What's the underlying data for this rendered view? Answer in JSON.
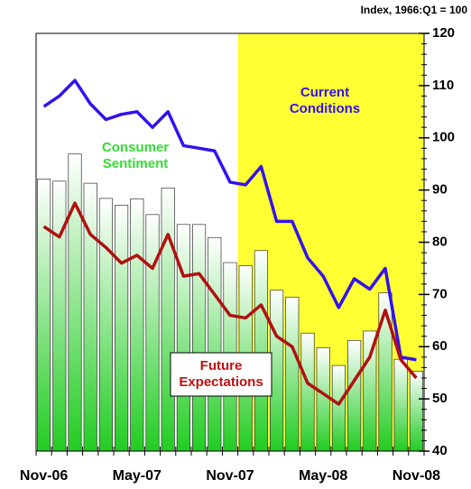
{
  "chart_data": {
    "type": "bar",
    "subtitle": "Index, 1966:Q1 = 100",
    "categories": [
      "Nov-06",
      null,
      null,
      null,
      null,
      null,
      "May-07",
      null,
      null,
      null,
      null,
      null,
      "Nov-07",
      null,
      null,
      null,
      null,
      null,
      "May-08",
      null,
      null,
      null,
      null,
      null,
      "Nov-08"
    ],
    "highlight": {
      "from": 13,
      "to": 24,
      "color": "#ffff33"
    },
    "ylim": [
      40,
      120
    ],
    "yticks": [
      40,
      50,
      60,
      70,
      80,
      90,
      100,
      110,
      120
    ],
    "series": [
      {
        "name": "Consumer Sentiment",
        "type": "bar",
        "color": "#22cc22",
        "label_color": "#33dd33",
        "values": [
          92.1,
          91.7,
          96.9,
          91.3,
          88.4,
          87.1,
          88.3,
          85.3,
          90.4,
          83.4,
          83.4,
          80.9,
          76.1,
          75.5,
          78.4,
          70.8,
          69.5,
          62.6,
          59.8,
          56.4,
          61.2,
          63.0,
          70.3,
          57.6,
          55.3
        ]
      },
      {
        "name": "Current Conditions",
        "type": "line",
        "color": "#3311ee",
        "label_color": "#3311ee",
        "values": [
          106,
          108,
          111,
          106.5,
          103.5,
          104.5,
          105,
          102,
          105,
          98.5,
          98,
          97.5,
          91.5,
          91,
          94.5,
          84,
          84,
          77,
          73.5,
          67.5,
          73,
          71,
          75,
          58,
          57.5
        ]
      },
      {
        "name": "Future Expectations",
        "type": "line",
        "color": "#b01010",
        "label_color": "#c01010",
        "values": [
          83,
          81,
          87.5,
          81.5,
          79,
          76,
          77.5,
          75,
          81.5,
          73.5,
          74,
          70,
          66,
          65.5,
          68,
          62,
          60,
          53,
          51,
          49,
          53.5,
          58,
          67,
          57.5,
          54
        ]
      }
    ]
  }
}
